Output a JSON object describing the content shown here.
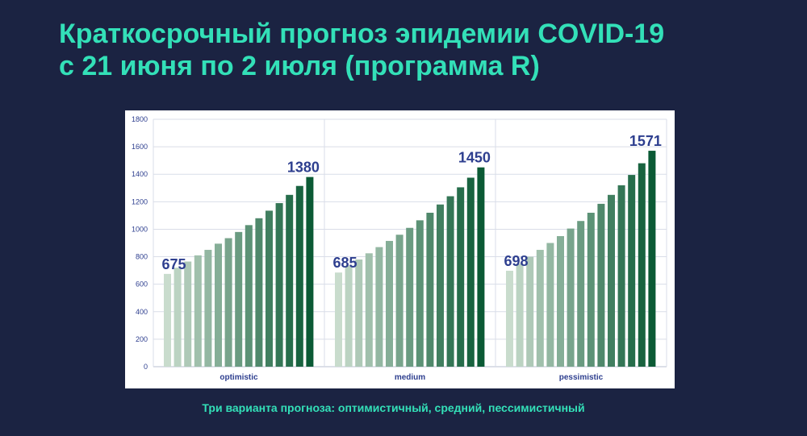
{
  "title": {
    "line1": "Краткосрочный прогноз эпидемии COVID-19",
    "line2": "с 21 июня по 2 июля (программа R)"
  },
  "caption": "Три варианта прогноза: оптимистичный, средний, пессимистичный",
  "colors": {
    "background": "#1b2342",
    "accent": "#33e0b8",
    "label": "#2e3f8f",
    "bar_light": "#c9dccd",
    "bar_dark": "#0b5a35"
  },
  "chart_data": {
    "type": "bar",
    "ylim": [
      0,
      1800
    ],
    "yticks": [
      0,
      200,
      400,
      600,
      800,
      1000,
      1200,
      1400,
      1600,
      1800
    ],
    "grid": true,
    "groups": [
      {
        "category": "optimistic",
        "values": [
          675,
          720,
          765,
          810,
          850,
          895,
          935,
          980,
          1030,
          1080,
          1135,
          1190,
          1250,
          1315,
          1380
        ],
        "first_label": "675",
        "last_label": "1380"
      },
      {
        "category": "medium",
        "values": [
          685,
          735,
          780,
          825,
          870,
          915,
          960,
          1010,
          1065,
          1120,
          1180,
          1240,
          1305,
          1375,
          1450
        ],
        "first_label": "685",
        "last_label": "1450"
      },
      {
        "category": "pessimistic",
        "values": [
          698,
          750,
          800,
          850,
          900,
          950,
          1005,
          1060,
          1120,
          1185,
          1250,
          1320,
          1395,
          1480,
          1571
        ],
        "first_label": "698",
        "last_label": "1571"
      }
    ]
  }
}
